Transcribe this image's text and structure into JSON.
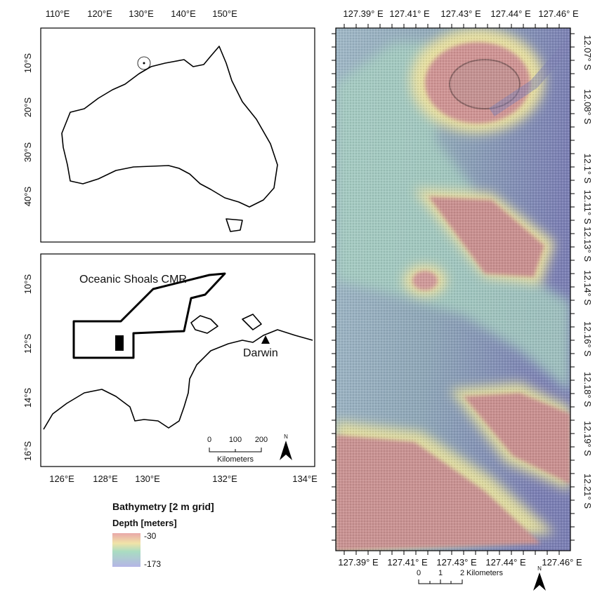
{
  "overview_map": {
    "lon_labels": [
      "110°E",
      "120°E",
      "130°E",
      "140°E",
      "150°E"
    ],
    "lat_labels": [
      "10°S",
      "20°S",
      "30°S",
      "40°S"
    ]
  },
  "inset_map": {
    "lat_labels": [
      "10°S",
      "12°S",
      "14°S",
      "16°S"
    ],
    "lon_labels": [
      "126°E",
      "128°E",
      "130°E",
      "132°E",
      "134°E"
    ],
    "area_label": "Oceanic Shoals CMR",
    "city": "Darwin",
    "scale_labels": [
      "0",
      "100",
      "200"
    ],
    "scale_unit": "Kilometers",
    "north": "N"
  },
  "legend": {
    "title": "Bathymetry [2 m grid]",
    "subtitle": "Depth [meters]",
    "high": "-30",
    "low": "-173"
  },
  "bathymetry_map": {
    "top_lon_labels": [
      "127.39° E",
      "127.41° E",
      "127.43° E",
      "127.44° E",
      "127.46° E"
    ],
    "bottom_lon_labels": [
      "127.39° E",
      "127.41° E",
      "127.43° E",
      "127.44° E",
      "127.46° E"
    ],
    "lat_labels": [
      "12.07° S",
      "12.08° S",
      "12.1° S",
      "12.11° S",
      "12.13° S",
      "12.14° S",
      "12.16° S",
      "12.18° S",
      "12.19° S",
      "12.21° S"
    ],
    "scale_labels": [
      "0",
      "1",
      "2"
    ],
    "scale_unit": "Kilometers",
    "north": "N"
  }
}
